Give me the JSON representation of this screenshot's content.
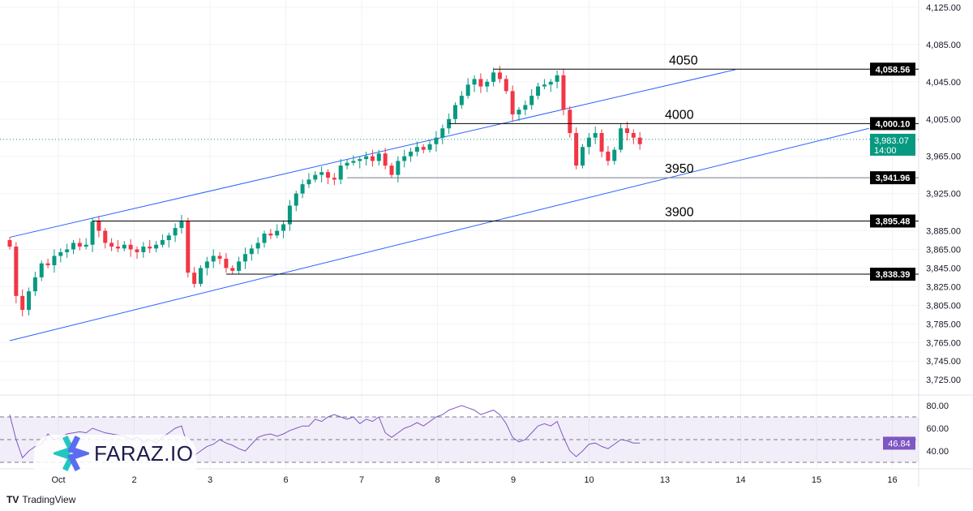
{
  "chart_data": {
    "type": "candlestick",
    "price_axis": {
      "range": [
        3715,
        4130
      ],
      "ticks": [
        "4,125.00",
        "4,085.00",
        "4,045.00",
        "4,005.00",
        "3,965.00",
        "3,925.00",
        "3,885.00",
        "3,865.00",
        "3,845.00",
        "3,825.00",
        "3,805.00",
        "3,785.00",
        "3,765.00",
        "3,745.00",
        "3,725.00"
      ],
      "tick_values": [
        4125,
        4085,
        4045,
        4005,
        3965,
        3925,
        3885,
        3865,
        3845,
        3825,
        3805,
        3785,
        3765,
        3745,
        3725
      ]
    },
    "time_axis": {
      "labels": [
        "Oct",
        "2",
        "3",
        "6",
        "7",
        "8",
        "9",
        "10",
        "13",
        "14",
        "15",
        "16"
      ],
      "positions": [
        0.5,
        1.5,
        2.5,
        3.5,
        4.5,
        5.5,
        6.5,
        7.5,
        8.5,
        9.5,
        10.5,
        11.5
      ]
    },
    "closes": [
      3868,
      3815,
      3800,
      3820,
      3835,
      3850,
      3848,
      3858,
      3862,
      3865,
      3872,
      3868,
      3870,
      3895,
      3885,
      3872,
      3868,
      3866,
      3870,
      3865,
      3862,
      3868,
      3866,
      3870,
      3875,
      3880,
      3888,
      3895,
      3840,
      3828,
      3845,
      3852,
      3858,
      3855,
      3845,
      3842,
      3852,
      3860,
      3866,
      3872,
      3882,
      3880,
      3885,
      3892,
      3912,
      3925,
      3935,
      3940,
      3945,
      3948,
      3942,
      3940,
      3955,
      3958,
      3960,
      3962,
      3965,
      3960,
      3968,
      3955,
      3945,
      3960,
      3965,
      3970,
      3975,
      3972,
      3978,
      3985,
      3995,
      4005,
      4020,
      4030,
      4042,
      4048,
      4040,
      4045,
      4055,
      4048,
      4035,
      4010,
      4015,
      4020,
      4030,
      4040,
      4042,
      4045,
      4052,
      4015,
      3990,
      3955,
      3975,
      3985,
      3990,
      3970,
      3960,
      3972,
      3995,
      3990,
      3985,
      3978
    ],
    "first_open": 3875,
    "levels": [
      {
        "value": 4058.56,
        "label": "4,058.56",
        "annotation": "4050",
        "start": 76
      },
      {
        "value": 4000.1,
        "label": "4,000.10",
        "annotation": "4000",
        "start": 69
      },
      {
        "value": 3941.96,
        "label": "3,941.96",
        "annotation": "3950",
        "start": 53
      },
      {
        "value": 3895.48,
        "label": "3,895.48",
        "annotation": "3900",
        "start": 13
      },
      {
        "value": 3838.39,
        "label": "3,838.39",
        "annotation": "",
        "start": 34
      }
    ],
    "channel": {
      "upper": [
        [
          0,
          3878
        ],
        [
          114,
          4058
        ]
      ],
      "lower": [
        [
          0,
          3767
        ],
        [
          135,
          3995
        ]
      ]
    },
    "current_price": {
      "value": 3983.07,
      "label": "3,983.07",
      "countdown": "14:00"
    },
    "rsi": {
      "ticks": [
        "80.00",
        "60.00",
        "40.00"
      ],
      "tick_values": [
        80,
        60,
        40
      ],
      "bands": [
        70,
        50,
        30
      ],
      "current": "46.84",
      "values": [
        72,
        50,
        34,
        40,
        44,
        46,
        55,
        50,
        52,
        55,
        56,
        57,
        56,
        60,
        58,
        56,
        55,
        54,
        53,
        50,
        52,
        48,
        50,
        47,
        52,
        56,
        60,
        62,
        44,
        36,
        40,
        44,
        46,
        50,
        47,
        45,
        42,
        40,
        46,
        52,
        54,
        55,
        53,
        55,
        58,
        60,
        62,
        62,
        68,
        66,
        70,
        72,
        70,
        68,
        70,
        64,
        68,
        66,
        70,
        56,
        52,
        56,
        60,
        62,
        65,
        62,
        66,
        70,
        72,
        76,
        78,
        80,
        78,
        76,
        72,
        74,
        76,
        72,
        64,
        52,
        48,
        50,
        56,
        62,
        64,
        62,
        66,
        52,
        40,
        35,
        40,
        46,
        47,
        44,
        42,
        46,
        50,
        49,
        47,
        47
      ]
    }
  },
  "colors": {
    "up": "#089981",
    "down": "#f23645",
    "channel": "#2962ff",
    "rsi": "#7e57c2"
  },
  "watermark": "FARAZ.IO",
  "footer": "TradingView"
}
